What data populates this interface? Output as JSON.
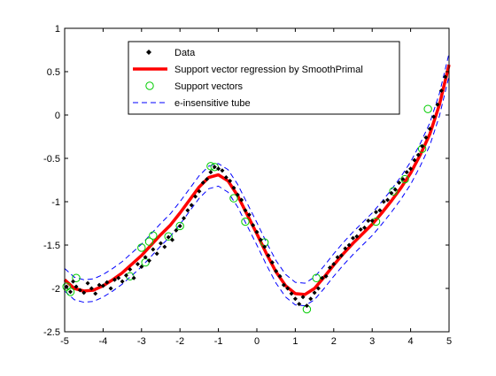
{
  "chart_data": {
    "type": "line",
    "title": "",
    "xlabel": "",
    "ylabel": "",
    "xlim": [
      -5,
      5
    ],
    "ylim": [
      -2.5,
      1
    ],
    "grid": false,
    "legend_position": "top-center",
    "xticks": [
      "-5",
      "-4",
      "-3",
      "-2",
      "-1",
      "0",
      "1",
      "2",
      "3",
      "4",
      "5"
    ],
    "yticks": [
      "1",
      "0.5",
      "0",
      "-0.5",
      "-1",
      "-1.5",
      "-2",
      "-2.5"
    ],
    "xtick_values": [
      -5,
      -4,
      -3,
      -2,
      -1,
      0,
      1,
      2,
      3,
      4,
      5
    ],
    "ytick_values": [
      1,
      0.5,
      0,
      -0.5,
      -1,
      -1.5,
      -2,
      -2.5
    ],
    "tube_epsilon": 0.13,
    "series": [
      {
        "name": "Data",
        "kind": "markers",
        "color": "#000000",
        "x": [
          -4.95,
          -4.85,
          -4.78,
          -4.7,
          -4.6,
          -4.5,
          -4.4,
          -4.3,
          -4.2,
          -4.1,
          -4.0,
          -3.9,
          -3.8,
          -3.7,
          -3.6,
          -3.5,
          -3.4,
          -3.3,
          -3.2,
          -3.1,
          -3.0,
          -2.9,
          -2.8,
          -2.7,
          -2.6,
          -2.5,
          -2.4,
          -2.3,
          -2.2,
          -2.1,
          -2.0,
          -1.9,
          -1.8,
          -1.7,
          -1.6,
          -1.5,
          -1.4,
          -1.3,
          -1.2,
          -1.1,
          -1.0,
          -0.9,
          -0.8,
          -0.7,
          -0.6,
          -0.5,
          -0.4,
          -0.3,
          -0.2,
          -0.1,
          0.0,
          0.1,
          0.2,
          0.3,
          0.4,
          0.5,
          0.6,
          0.7,
          0.8,
          0.9,
          1.0,
          1.1,
          1.2,
          1.3,
          1.4,
          1.5,
          1.6,
          1.7,
          1.8,
          1.9,
          2.0,
          2.1,
          2.2,
          2.3,
          2.4,
          2.5,
          2.6,
          2.7,
          2.8,
          2.9,
          3.0,
          3.1,
          3.2,
          3.3,
          3.4,
          3.5,
          3.6,
          3.7,
          3.8,
          3.9,
          4.0,
          4.1,
          4.2,
          4.3,
          4.4,
          4.5,
          4.6,
          4.7,
          4.8,
          4.9
        ],
        "y": [
          -1.98,
          -2.04,
          -1.92,
          -1.98,
          -2.02,
          -2.05,
          -1.94,
          -2.0,
          -2.06,
          -1.96,
          -1.97,
          -1.93,
          -2.0,
          -1.9,
          -1.88,
          -1.92,
          -1.85,
          -1.78,
          -1.88,
          -1.72,
          -1.75,
          -1.64,
          -1.68,
          -1.55,
          -1.6,
          -1.48,
          -1.52,
          -1.41,
          -1.44,
          -1.33,
          -1.28,
          -1.19,
          -1.1,
          -1.04,
          -0.94,
          -0.88,
          -0.78,
          -0.74,
          -0.66,
          -0.6,
          -0.62,
          -0.64,
          -0.72,
          -0.76,
          -0.84,
          -0.92,
          -0.98,
          -1.1,
          -1.15,
          -1.27,
          -1.35,
          -1.44,
          -1.52,
          -1.62,
          -1.7,
          -1.8,
          -1.86,
          -1.96,
          -2.0,
          -2.06,
          -2.12,
          -2.18,
          -2.1,
          -2.2,
          -2.12,
          -2.05,
          -2.0,
          -1.88,
          -1.86,
          -1.76,
          -1.72,
          -1.64,
          -1.62,
          -1.54,
          -1.5,
          -1.42,
          -1.4,
          -1.32,
          -1.3,
          -1.22,
          -1.22,
          -1.12,
          -1.1,
          -1.0,
          -0.98,
          -0.9,
          -0.86,
          -0.78,
          -0.74,
          -0.66,
          -0.62,
          -0.52,
          -0.46,
          -0.36,
          -0.26,
          -0.16,
          -0.02,
          0.12,
          0.28,
          0.44
        ]
      },
      {
        "name": "Support vector regression by SmoothPrimal",
        "kind": "line",
        "color": "#ff0000",
        "x": [
          -5.0,
          -4.75,
          -4.5,
          -4.25,
          -4.0,
          -3.75,
          -3.5,
          -3.25,
          -3.0,
          -2.75,
          -2.5,
          -2.25,
          -2.0,
          -1.75,
          -1.5,
          -1.25,
          -1.0,
          -0.75,
          -0.5,
          -0.25,
          0.0,
          0.25,
          0.5,
          0.75,
          1.0,
          1.25,
          1.5,
          1.75,
          2.0,
          2.25,
          2.5,
          2.75,
          3.0,
          3.25,
          3.5,
          3.75,
          4.0,
          4.25,
          4.5,
          4.75,
          5.0
        ],
        "y": [
          -1.9,
          -2.0,
          -2.03,
          -2.02,
          -1.97,
          -1.9,
          -1.82,
          -1.72,
          -1.62,
          -1.5,
          -1.38,
          -1.27,
          -1.13,
          -0.98,
          -0.83,
          -0.72,
          -0.69,
          -0.76,
          -0.93,
          -1.15,
          -1.37,
          -1.6,
          -1.81,
          -1.97,
          -2.06,
          -2.07,
          -2.0,
          -1.87,
          -1.73,
          -1.6,
          -1.48,
          -1.37,
          -1.26,
          -1.13,
          -0.99,
          -0.84,
          -0.67,
          -0.46,
          -0.22,
          0.12,
          0.58
        ]
      },
      {
        "name": "Support vectors",
        "kind": "circles",
        "color": "#00cc00",
        "x": [
          -4.95,
          -4.85,
          -4.7,
          -3.3,
          -3.0,
          -2.9,
          -2.8,
          -2.7,
          -2.3,
          -2.0,
          -1.2,
          -1.1,
          -0.6,
          -0.3,
          0.2,
          1.3,
          1.55,
          3.1,
          3.55,
          3.85,
          4.3,
          4.45
        ],
        "y": [
          -1.98,
          -2.04,
          -1.88,
          -1.86,
          -1.53,
          -1.7,
          -1.46,
          -1.39,
          -1.4,
          -1.28,
          -0.59,
          -0.6,
          -0.96,
          -1.23,
          -1.47,
          -2.24,
          -1.88,
          -1.23,
          -0.88,
          -0.74,
          -0.39,
          0.07
        ]
      },
      {
        "name": "e-insensitive tube",
        "kind": "dashed",
        "color": "#0000ff"
      }
    ]
  }
}
